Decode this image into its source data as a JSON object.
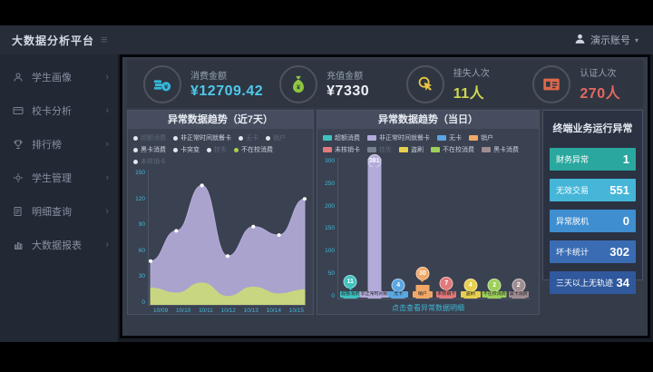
{
  "app": {
    "title": "大数据分析平台",
    "user_label": "演示账号",
    "user_caret": "▾",
    "hamburger": "≡"
  },
  "sidebar": {
    "items": [
      {
        "label": "学生画像",
        "icon": "student-icon"
      },
      {
        "label": "校卡分析",
        "icon": "card-icon"
      },
      {
        "label": "排行榜",
        "icon": "trophy-icon"
      },
      {
        "label": "学生管理",
        "icon": "manage-icon"
      },
      {
        "label": "明细查询",
        "icon": "query-icon"
      },
      {
        "label": "大数据报表",
        "icon": "report-icon"
      }
    ]
  },
  "kpis": [
    {
      "label": "消费金额",
      "value": "¥12709.42",
      "color": "#4ec9ea",
      "icon": "coins-icon",
      "icon_color": "#35b8dc"
    },
    {
      "label": "充值金额",
      "value": "¥7330",
      "color": "#eef2f7",
      "icon": "moneybag-icon",
      "icon_color": "#8dc63f"
    },
    {
      "label": "挂失人次",
      "value": "11人",
      "color": "#cfd94e",
      "icon": "click-icon",
      "icon_color": "#e8c542"
    },
    {
      "label": "认证人次",
      "value": "270人",
      "color": "#e4685f",
      "icon": "idcard-icon",
      "icon_color": "#e0684a"
    }
  ],
  "chart_data": [
    {
      "type": "area",
      "title": "异常数据趋势（近7天）",
      "legend": [
        {
          "label": "超额消费",
          "dim": true
        },
        {
          "label": "非正常时间就餐卡",
          "dim": false
        },
        {
          "label": "无卡",
          "dim": true
        },
        {
          "label": "销户",
          "dim": true
        },
        {
          "label": "黑卡消费",
          "dim": false
        },
        {
          "label": "卡突变",
          "dim": false
        },
        {
          "label": "挂失",
          "dim": true
        },
        {
          "label": "不在校消费",
          "dim": false,
          "dot_color": "#aace4e"
        },
        {
          "label": "未核销卡",
          "dim": true
        }
      ],
      "x": [
        "10/09",
        "10/10",
        "10/11",
        "10/12",
        "10/13",
        "10/14",
        "10/15"
      ],
      "yticks": [
        0,
        30,
        60,
        90,
        120,
        150
      ],
      "ylim": [
        0,
        150
      ],
      "grid": false,
      "legend_position": "top",
      "series": [
        {
          "name": "非正常时间就餐卡",
          "color": "#b3abd9",
          "values": [
            52,
            88,
            142,
            58,
            93,
            83,
            126
          ]
        },
        {
          "name": "不在校消费",
          "color": "#c9d97c",
          "values": [
            20,
            14,
            26,
            10,
            21,
            13,
            18
          ]
        }
      ]
    },
    {
      "type": "bar",
      "title": "异常数据趋势（当日）",
      "legend": [
        {
          "label": "超额消费",
          "color": "#3fc1c0",
          "dim": false
        },
        {
          "label": "非正常时间就餐卡",
          "color": "#b3abd9",
          "dim": false
        },
        {
          "label": "无卡",
          "color": "#5aa6e0",
          "dim": false
        },
        {
          "label": "销户",
          "color": "#f0a868",
          "dim": false
        },
        {
          "label": "未核销卡",
          "color": "#e07a7c",
          "dim": false
        },
        {
          "label": "挂失",
          "color": "#7a818e",
          "dim": true
        },
        {
          "label": "盗刷",
          "color": "#e6cf4e",
          "dim": false
        },
        {
          "label": "不在校消费",
          "color": "#9ccf5a",
          "dim": false
        },
        {
          "label": "黑卡消费",
          "color": "#a08d92",
          "dim": false
        }
      ],
      "categories": [
        "超额消费",
        "非正常时间就餐卡",
        "无卡",
        "销户",
        "未核销卡",
        "盗刷",
        "不在校消费",
        "黑卡消费"
      ],
      "bars": [
        {
          "label": "超额消费",
          "value": 11,
          "color": "#3fc1c0"
        },
        {
          "label": "非正常时间就餐卡",
          "value": 381,
          "color": "#b3abd9"
        },
        {
          "label": "无卡",
          "value": 4,
          "color": "#5aa6e0"
        },
        {
          "label": "销户",
          "value": 30,
          "color": "#f0a868"
        },
        {
          "label": "未核销卡",
          "value": 7,
          "color": "#e07a7c"
        },
        {
          "label": "盗刷",
          "value": 4,
          "color": "#e6cf4e"
        },
        {
          "label": "不在校消费",
          "value": 2,
          "color": "#9ccf5a"
        },
        {
          "label": "黑卡消费",
          "value": 2,
          "color": "#a08d92"
        }
      ],
      "yticks": [
        0,
        50,
        100,
        150,
        200,
        250,
        300
      ],
      "ylim": [
        0,
        300
      ],
      "grid": false,
      "legend_position": "top",
      "caption": "点击查看异常数据明细"
    }
  ],
  "terminal_panel": {
    "title": "终端业务运行异常",
    "rows": [
      {
        "label": "财务异常",
        "value": "1",
        "bg": "#2aa79e"
      },
      {
        "label": "无效交易",
        "value": "551",
        "bg": "#45b6d8"
      },
      {
        "label": "异常脱机",
        "value": "0",
        "bg": "#3e8ed0"
      },
      {
        "label": "坏卡统计",
        "value": "302",
        "bg": "#3a6cb4"
      },
      {
        "label": "三天以上无轨迹",
        "value": "34",
        "bg": "#30589d"
      }
    ]
  }
}
